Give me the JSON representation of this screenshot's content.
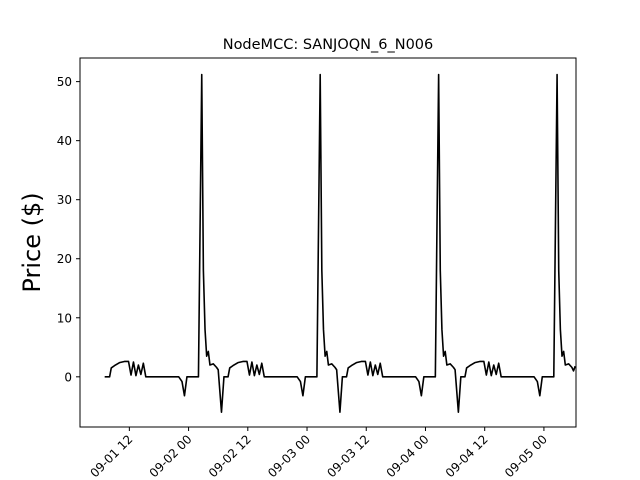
{
  "chart_data": {
    "type": "line",
    "title": "NodeMCC: SANJOQN_6_N006",
    "xlabel": "",
    "ylabel": "Price ($)",
    "ylim": [
      -8.5,
      54
    ],
    "xlim": [
      "2016-09-01 02:00",
      "2016-09-05 06:30"
    ],
    "yticks": [
      0,
      10,
      20,
      30,
      40,
      50
    ],
    "xticks": [
      {
        "t": "2016-09-01 12:00",
        "label": "09-01 12"
      },
      {
        "t": "2016-09-02 00:00",
        "label": "09-02 00"
      },
      {
        "t": "2016-09-02 12:00",
        "label": "09-02 12"
      },
      {
        "t": "2016-09-03 00:00",
        "label": "09-03 00"
      },
      {
        "t": "2016-09-03 12:00",
        "label": "09-03 12"
      },
      {
        "t": "2016-09-04 00:00",
        "label": "09-04 00"
      },
      {
        "t": "2016-09-04 12:00",
        "label": "09-04 12"
      },
      {
        "t": "2016-09-05 00:00",
        "label": "09-05 00"
      }
    ],
    "grid": false,
    "line_color": "#000000",
    "series": [
      {
        "name": "",
        "points": [
          [
            "2016-09-01 07:00",
            0
          ],
          [
            "2016-09-01 08:00",
            0
          ],
          [
            "2016-09-01 08:20",
            1.5
          ],
          [
            "2016-09-01 09:00",
            1.9
          ],
          [
            "2016-09-01 10:00",
            2.4
          ],
          [
            "2016-09-01 11:00",
            2.6
          ],
          [
            "2016-09-01 11:50",
            2.6
          ],
          [
            "2016-09-01 12:20",
            0.3
          ],
          [
            "2016-09-01 12:50",
            2.5
          ],
          [
            "2016-09-01 13:20",
            0.2
          ],
          [
            "2016-09-01 13:50",
            2.0
          ],
          [
            "2016-09-01 14:20",
            0.4
          ],
          [
            "2016-09-01 14:50",
            2.3
          ],
          [
            "2016-09-01 15:20",
            0
          ],
          [
            "2016-09-01 18:00",
            0
          ],
          [
            "2016-09-01 21:00",
            0
          ],
          [
            "2016-09-01 22:00",
            0
          ],
          [
            "2016-09-01 22:40",
            -0.8
          ],
          [
            "2016-09-01 23:10",
            -3.2
          ],
          [
            "2016-09-01 23:40",
            0
          ],
          [
            "2016-09-02 01:00",
            0
          ],
          [
            "2016-09-02 02:00",
            0
          ],
          [
            "2016-09-02 02:40",
            51.2
          ],
          [
            "2016-09-02 03:00",
            18
          ],
          [
            "2016-09-02 03:20",
            8
          ],
          [
            "2016-09-02 03:40",
            3.5
          ],
          [
            "2016-09-02 04:00",
            4.3
          ],
          [
            "2016-09-02 04:20",
            2.0
          ],
          [
            "2016-09-02 05:00",
            2.2
          ],
          [
            "2016-09-02 05:40",
            1.6
          ],
          [
            "2016-09-02 06:00",
            1.2
          ],
          [
            "2016-09-02 06:40",
            -6.0
          ],
          [
            "2016-09-02 07:10",
            0
          ],
          [
            "2016-09-02 08:00",
            0
          ],
          [
            "2016-09-02 08:20",
            1.5
          ],
          [
            "2016-09-02 09:00",
            1.9
          ],
          [
            "2016-09-02 10:00",
            2.4
          ],
          [
            "2016-09-02 11:00",
            2.6
          ],
          [
            "2016-09-02 11:50",
            2.6
          ],
          [
            "2016-09-02 12:20",
            0.3
          ],
          [
            "2016-09-02 12:50",
            2.5
          ],
          [
            "2016-09-02 13:20",
            0.2
          ],
          [
            "2016-09-02 13:50",
            2.0
          ],
          [
            "2016-09-02 14:20",
            0.4
          ],
          [
            "2016-09-02 14:50",
            2.3
          ],
          [
            "2016-09-02 15:20",
            0
          ],
          [
            "2016-09-02 18:00",
            0
          ],
          [
            "2016-09-02 21:00",
            0
          ],
          [
            "2016-09-02 22:00",
            0
          ],
          [
            "2016-09-02 22:40",
            -0.8
          ],
          [
            "2016-09-02 23:10",
            -3.2
          ],
          [
            "2016-09-02 23:40",
            0
          ],
          [
            "2016-09-03 01:00",
            0
          ],
          [
            "2016-09-03 02:00",
            0
          ],
          [
            "2016-09-03 02:40",
            51.2
          ],
          [
            "2016-09-03 03:00",
            18
          ],
          [
            "2016-09-03 03:20",
            8
          ],
          [
            "2016-09-03 03:40",
            3.5
          ],
          [
            "2016-09-03 04:00",
            4.3
          ],
          [
            "2016-09-03 04:20",
            2.0
          ],
          [
            "2016-09-03 05:00",
            2.2
          ],
          [
            "2016-09-03 05:40",
            1.6
          ],
          [
            "2016-09-03 06:00",
            1.2
          ],
          [
            "2016-09-03 06:40",
            -6.0
          ],
          [
            "2016-09-03 07:10",
            0
          ],
          [
            "2016-09-03 08:00",
            0
          ],
          [
            "2016-09-03 08:20",
            1.5
          ],
          [
            "2016-09-03 09:00",
            1.9
          ],
          [
            "2016-09-03 10:00",
            2.4
          ],
          [
            "2016-09-03 11:00",
            2.6
          ],
          [
            "2016-09-03 11:50",
            2.6
          ],
          [
            "2016-09-03 12:20",
            0.3
          ],
          [
            "2016-09-03 12:50",
            2.5
          ],
          [
            "2016-09-03 13:20",
            0.2
          ],
          [
            "2016-09-03 13:50",
            2.0
          ],
          [
            "2016-09-03 14:20",
            0.4
          ],
          [
            "2016-09-03 14:50",
            2.3
          ],
          [
            "2016-09-03 15:20",
            0
          ],
          [
            "2016-09-03 18:00",
            0
          ],
          [
            "2016-09-03 21:00",
            0
          ],
          [
            "2016-09-03 22:00",
            0
          ],
          [
            "2016-09-03 22:40",
            -0.8
          ],
          [
            "2016-09-03 23:10",
            -3.2
          ],
          [
            "2016-09-03 23:40",
            0
          ],
          [
            "2016-09-04 01:00",
            0
          ],
          [
            "2016-09-04 02:00",
            0
          ],
          [
            "2016-09-04 02:40",
            51.2
          ],
          [
            "2016-09-04 03:00",
            18
          ],
          [
            "2016-09-04 03:20",
            8
          ],
          [
            "2016-09-04 03:40",
            3.5
          ],
          [
            "2016-09-04 04:00",
            4.3
          ],
          [
            "2016-09-04 04:20",
            2.0
          ],
          [
            "2016-09-04 05:00",
            2.2
          ],
          [
            "2016-09-04 05:40",
            1.6
          ],
          [
            "2016-09-04 06:00",
            1.2
          ],
          [
            "2016-09-04 06:40",
            -6.0
          ],
          [
            "2016-09-04 07:10",
            0
          ],
          [
            "2016-09-04 08:00",
            0
          ],
          [
            "2016-09-04 08:20",
            1.5
          ],
          [
            "2016-09-04 09:00",
            1.9
          ],
          [
            "2016-09-04 10:00",
            2.4
          ],
          [
            "2016-09-04 11:00",
            2.6
          ],
          [
            "2016-09-04 11:50",
            2.6
          ],
          [
            "2016-09-04 12:20",
            0.3
          ],
          [
            "2016-09-04 12:50",
            2.5
          ],
          [
            "2016-09-04 13:20",
            0.2
          ],
          [
            "2016-09-04 13:50",
            2.0
          ],
          [
            "2016-09-04 14:20",
            0.4
          ],
          [
            "2016-09-04 14:50",
            2.3
          ],
          [
            "2016-09-04 15:20",
            0
          ],
          [
            "2016-09-04 18:00",
            0
          ],
          [
            "2016-09-04 21:00",
            0
          ],
          [
            "2016-09-04 22:00",
            0
          ],
          [
            "2016-09-04 22:40",
            -0.8
          ],
          [
            "2016-09-04 23:10",
            -3.2
          ],
          [
            "2016-09-04 23:40",
            0
          ],
          [
            "2016-09-05 01:00",
            0
          ],
          [
            "2016-09-05 02:00",
            0
          ],
          [
            "2016-09-05 02:40",
            51.2
          ],
          [
            "2016-09-05 03:00",
            18
          ],
          [
            "2016-09-05 03:20",
            8
          ],
          [
            "2016-09-05 03:40",
            3.5
          ],
          [
            "2016-09-05 04:00",
            4.3
          ],
          [
            "2016-09-05 04:20",
            2.0
          ],
          [
            "2016-09-05 05:00",
            2.2
          ],
          [
            "2016-09-05 05:40",
            1.6
          ],
          [
            "2016-09-05 06:00",
            1.0
          ],
          [
            "2016-09-05 06:20",
            1.8
          ]
        ]
      }
    ]
  }
}
